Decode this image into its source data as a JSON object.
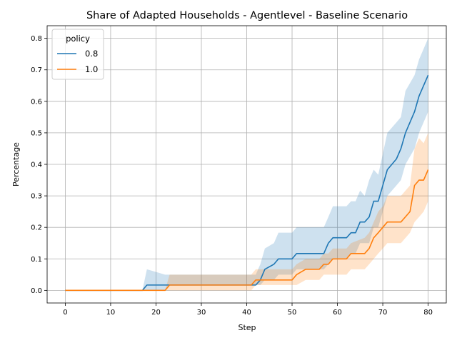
{
  "chart_data": {
    "type": "line",
    "title": "Share of Adapted Households - Agentlevel - Baseline Scenario",
    "xlabel": "Step",
    "ylabel": "Percentage",
    "xlim": [
      -4,
      84
    ],
    "ylim": [
      -0.04,
      0.84
    ],
    "xticks": [
      0,
      10,
      20,
      30,
      40,
      50,
      60,
      70,
      80
    ],
    "yticks": [
      0.0,
      0.1,
      0.2,
      0.3,
      0.4,
      0.5,
      0.6,
      0.7,
      0.8
    ],
    "grid": true,
    "legend": {
      "title": "policy",
      "placement": "top-left"
    },
    "series": [
      {
        "name": "0.8",
        "color": "#1f77b4",
        "band_color": "#1f77b4",
        "x": [
          0,
          17,
          18,
          22,
          23,
          42,
          43,
          44,
          46,
          47,
          50,
          51,
          57,
          58,
          59,
          62,
          63,
          64,
          65,
          66,
          67,
          68,
          69,
          70,
          71,
          73,
          74,
          75,
          77,
          78,
          80
        ],
        "y": [
          0,
          0,
          0.017,
          0.017,
          0.017,
          0.017,
          0.033,
          0.067,
          0.083,
          0.1,
          0.1,
          0.117,
          0.117,
          0.15,
          0.167,
          0.167,
          0.183,
          0.183,
          0.217,
          0.217,
          0.233,
          0.283,
          0.283,
          0.333,
          0.383,
          0.417,
          0.45,
          0.5,
          0.567,
          0.617,
          0.683
        ],
        "lower": [
          0,
          0,
          0,
          0,
          0.017,
          0.017,
          0.017,
          0.033,
          0.033,
          0.05,
          0.05,
          0.067,
          0.067,
          0.083,
          0.1,
          0.1,
          0.117,
          0.117,
          0.15,
          0.15,
          0.15,
          0.2,
          0.2,
          0.25,
          0.3,
          0.333,
          0.35,
          0.4,
          0.45,
          0.5,
          0.567
        ],
        "upper": [
          0,
          0,
          0.067,
          0.05,
          0.05,
          0.05,
          0.083,
          0.133,
          0.15,
          0.183,
          0.183,
          0.2,
          0.2,
          0.233,
          0.267,
          0.267,
          0.283,
          0.283,
          0.317,
          0.3,
          0.35,
          0.383,
          0.367,
          0.433,
          0.5,
          0.533,
          0.55,
          0.633,
          0.683,
          0.733,
          0.8
        ]
      },
      {
        "name": "1.0",
        "color": "#ff7f0e",
        "band_color": "#ff7f0e",
        "x": [
          0,
          22,
          23,
          41,
          42,
          50,
          51,
          53,
          56,
          57,
          58,
          59,
          62,
          63,
          66,
          67,
          68,
          69,
          70,
          71,
          74,
          76,
          77,
          78,
          79,
          80
        ],
        "y": [
          0,
          0,
          0.017,
          0.017,
          0.033,
          0.033,
          0.05,
          0.067,
          0.067,
          0.083,
          0.083,
          0.1,
          0.1,
          0.117,
          0.117,
          0.133,
          0.167,
          0.183,
          0.2,
          0.217,
          0.217,
          0.25,
          0.333,
          0.35,
          0.35,
          0.383
        ],
        "lower": [
          0,
          0,
          0,
          0,
          0.017,
          0.017,
          0.017,
          0.033,
          0.033,
          0.05,
          0.05,
          0.05,
          0.05,
          0.067,
          0.067,
          0.083,
          0.1,
          0.117,
          0.133,
          0.15,
          0.15,
          0.183,
          0.217,
          0.233,
          0.25,
          0.283
        ],
        "upper": [
          0,
          0,
          0.05,
          0.05,
          0.067,
          0.067,
          0.083,
          0.1,
          0.1,
          0.117,
          0.117,
          0.133,
          0.133,
          0.15,
          0.167,
          0.183,
          0.217,
          0.25,
          0.267,
          0.3,
          0.3,
          0.333,
          0.45,
          0.483,
          0.467,
          0.5
        ]
      }
    ]
  }
}
